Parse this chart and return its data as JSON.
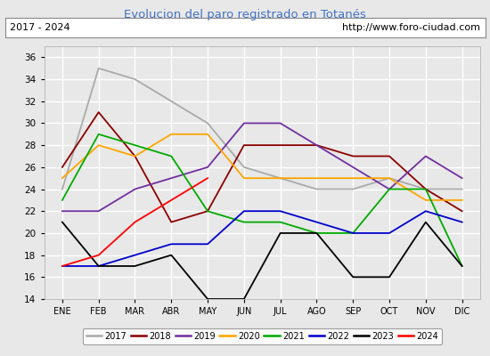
{
  "title": "Evolucion del paro registrado en Totanés",
  "title_color": "#4472c4",
  "subtitle_left": "2017 - 2024",
  "subtitle_right": "http://www.foro-ciudad.com",
  "xlabel_months": [
    "ENE",
    "FEB",
    "MAR",
    "ABR",
    "MAY",
    "JUN",
    "JUL",
    "AGO",
    "SEP",
    "OCT",
    "NOV",
    "DIC"
  ],
  "ylim": [
    14,
    37
  ],
  "yticks": [
    14,
    16,
    18,
    20,
    22,
    24,
    26,
    28,
    30,
    32,
    34,
    36
  ],
  "series": {
    "2017": {
      "color": "#aaaaaa",
      "values": [
        24,
        35,
        34,
        32,
        30,
        26,
        25,
        24,
        24,
        25,
        24,
        24
      ]
    },
    "2018": {
      "color": "#8b0000",
      "values": [
        26,
        31,
        27,
        21,
        22,
        28,
        28,
        28,
        27,
        27,
        24,
        22
      ]
    },
    "2019": {
      "color": "#7030a0",
      "values": [
        22,
        22,
        24,
        25,
        26,
        30,
        30,
        28,
        26,
        24,
        27,
        25
      ]
    },
    "2020": {
      "color": "#ffa500",
      "values": [
        25,
        28,
        27,
        29,
        29,
        25,
        25,
        25,
        25,
        25,
        23,
        23
      ]
    },
    "2021": {
      "color": "#00aa00",
      "values": [
        23,
        29,
        28,
        27,
        22,
        21,
        21,
        20,
        20,
        24,
        24,
        17
      ]
    },
    "2022": {
      "color": "#0000cc",
      "values": [
        17,
        17,
        18,
        19,
        19,
        22,
        22,
        21,
        20,
        20,
        22,
        21
      ]
    },
    "2023": {
      "color": "#000000",
      "values": [
        21,
        17,
        17,
        18,
        14,
        14,
        20,
        20,
        16,
        16,
        21,
        17
      ]
    },
    "2024": {
      "color": "#ff0000",
      "values": [
        17,
        18,
        21,
        23,
        25,
        null,
        null,
        null,
        null,
        null,
        null,
        null
      ]
    }
  },
  "background_color": "#e8e8e8",
  "plot_bg_color": "#e8e8e8",
  "grid_color": "#ffffff",
  "fig_width": 5.5,
  "fig_height": 4.0,
  "dpi": 100
}
